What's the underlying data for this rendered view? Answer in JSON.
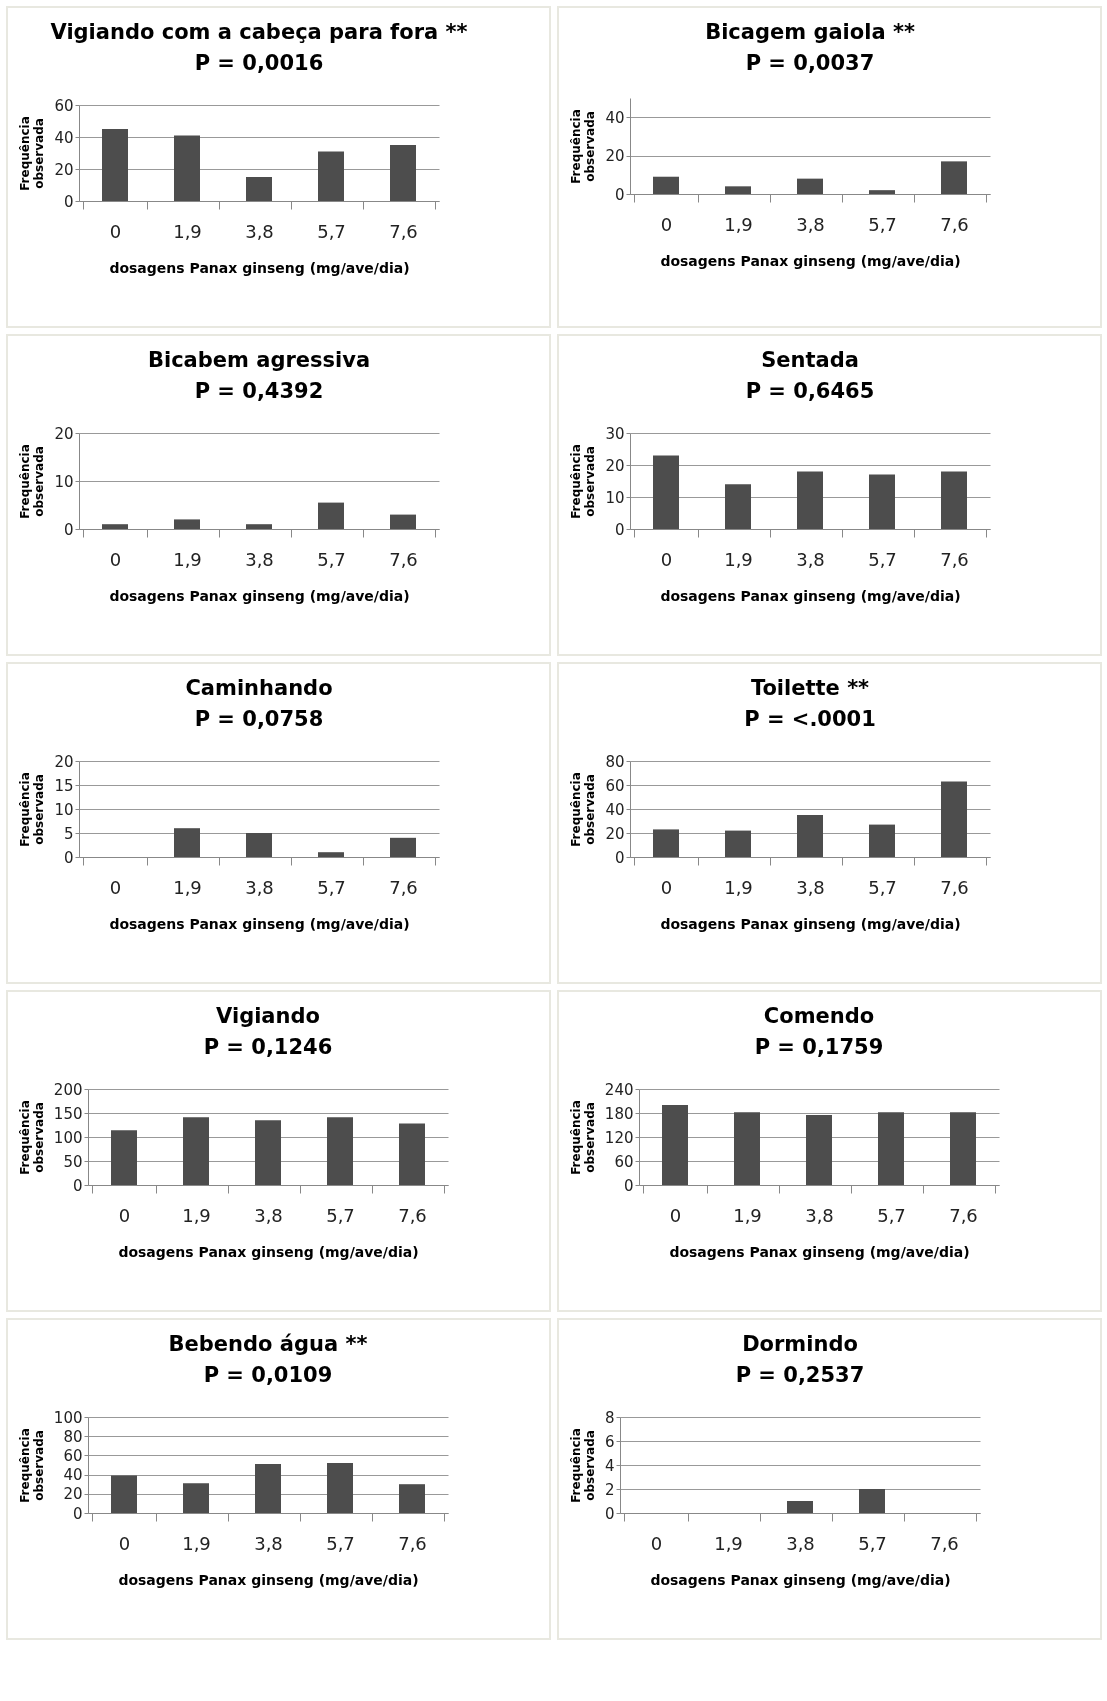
{
  "chart_data": [
    {
      "type": "bar",
      "title": "Vigiando com a cabeça para fora **",
      "subtitle": "P = 0,0016",
      "xlabel": "dosagens Panax ginseng (mg/ave/dia)",
      "ylabel": "Frequência observada",
      "categories": [
        "0",
        "1,9",
        "3,8",
        "5,7",
        "7,6"
      ],
      "values": [
        45,
        41,
        15,
        31,
        35
      ],
      "color": "#4d4d4d",
      "ylim": [
        0,
        60
      ],
      "yticks": [
        0,
        20,
        40,
        60
      ],
      "grid": "y"
    },
    {
      "type": "bar",
      "title": "Bicagem gaiola **",
      "subtitle": "P = 0,0037",
      "xlabel": "dosagens Panax ginseng (mg/ave/dia)",
      "ylabel": "Frequência observada",
      "categories": [
        "0",
        "1,9",
        "3,8",
        "5,7",
        "7,6"
      ],
      "values": [
        9,
        4,
        8,
        2,
        17
      ],
      "color": "#4d4d4d",
      "ylim": [
        0,
        50
      ],
      "yticks": [
        0,
        20,
        40
      ],
      "grid": "y"
    },
    {
      "type": "bar",
      "title": "Bicabem agressiva",
      "subtitle": "P = 0,4392",
      "xlabel": "dosagens Panax ginseng (mg/ave/dia)",
      "ylabel": "Frequência observada",
      "categories": [
        "0",
        "1,9",
        "3,8",
        "5,7",
        "7,6"
      ],
      "values": [
        1,
        2,
        1,
        5.5,
        3
      ],
      "color": "#4d4d4d",
      "ylim": [
        0,
        20
      ],
      "yticks": [
        0,
        10,
        20
      ],
      "grid": "y"
    },
    {
      "type": "bar",
      "title": "Sentada",
      "subtitle": "P = 0,6465",
      "xlabel": "dosagens Panax ginseng (mg/ave/dia)",
      "ylabel": "Frequência observada",
      "categories": [
        "0",
        "1,9",
        "3,8",
        "5,7",
        "7,6"
      ],
      "values": [
        23,
        14,
        18,
        17,
        18
      ],
      "color": "#4d4d4d",
      "ylim": [
        0,
        30
      ],
      "yticks": [
        0,
        10,
        20,
        30
      ],
      "grid": "y"
    },
    {
      "type": "bar",
      "title": "Caminhando",
      "subtitle": "P = 0,0758",
      "xlabel": "dosagens Panax ginseng (mg/ave/dia)",
      "ylabel": "Frequência observada",
      "categories": [
        "0",
        "1,9",
        "3,8",
        "5,7",
        "7,6"
      ],
      "values": [
        0,
        6,
        5,
        1,
        4
      ],
      "color": "#4d4d4d",
      "ylim": [
        0,
        20
      ],
      "yticks": [
        0,
        5,
        10,
        15,
        20
      ],
      "grid": "y"
    },
    {
      "type": "bar",
      "title": "Toilette **",
      "subtitle": "P = <.0001",
      "xlabel": "dosagens Panax ginseng (mg/ave/dia)",
      "ylabel": "Frequência observada",
      "categories": [
        "0",
        "1,9",
        "3,8",
        "5,7",
        "7,6"
      ],
      "values": [
        23,
        22,
        35,
        27,
        63
      ],
      "color": "#4d4d4d",
      "ylim": [
        0,
        80
      ],
      "yticks": [
        0,
        20,
        40,
        60,
        80
      ],
      "grid": "y"
    },
    {
      "type": "bar",
      "title": "Vigiando",
      "subtitle": "P = 0,1246",
      "xlabel": "dosagens Panax ginseng (mg/ave/dia)",
      "ylabel": "Frequência observada",
      "categories": [
        "0",
        "1,9",
        "3,8",
        "5,7",
        "7,6"
      ],
      "values": [
        114,
        141,
        135,
        141,
        128
      ],
      "color": "#4d4d4d",
      "ylim": [
        0,
        200
      ],
      "yticks": [
        0,
        50,
        100,
        150,
        200
      ],
      "grid": "y"
    },
    {
      "type": "bar",
      "title": "Comendo",
      "subtitle": "P = 0,1759",
      "xlabel": "dosagens Panax ginseng (mg/ave/dia)",
      "ylabel": "Frequência observada",
      "categories": [
        "0",
        "1,9",
        "3,8",
        "5,7",
        "7,6"
      ],
      "values": [
        200,
        182,
        175,
        182,
        182
      ],
      "color": "#4d4d4d",
      "ylim": [
        0,
        240
      ],
      "yticks": [
        0,
        60,
        120,
        180,
        240
      ],
      "grid": "y"
    },
    {
      "type": "bar",
      "title": "Bebendo água **",
      "subtitle": "P = 0,0109",
      "xlabel": "dosagens Panax ginseng (mg/ave/dia)",
      "ylabel": "Frequência observada",
      "categories": [
        "0",
        "1,9",
        "3,8",
        "5,7",
        "7,6"
      ],
      "values": [
        39,
        31,
        51,
        52,
        30
      ],
      "color": "#4d4d4d",
      "ylim": [
        0,
        100
      ],
      "yticks": [
        0,
        20,
        40,
        60,
        80,
        100
      ],
      "grid": "y"
    },
    {
      "type": "bar",
      "title": "Dormindo",
      "subtitle": "P = 0,2537",
      "xlabel": "dosagens Panax ginseng (mg/ave/dia)",
      "ylabel": "Frequência observada",
      "categories": [
        "0",
        "1,9",
        "3,8",
        "5,7",
        "7,6"
      ],
      "values": [
        0,
        0,
        1,
        2,
        0
      ],
      "color": "#4d4d4d",
      "ylim": [
        0,
        8
      ],
      "yticks": [
        0,
        2,
        4,
        6,
        8
      ],
      "grid": "y"
    }
  ]
}
